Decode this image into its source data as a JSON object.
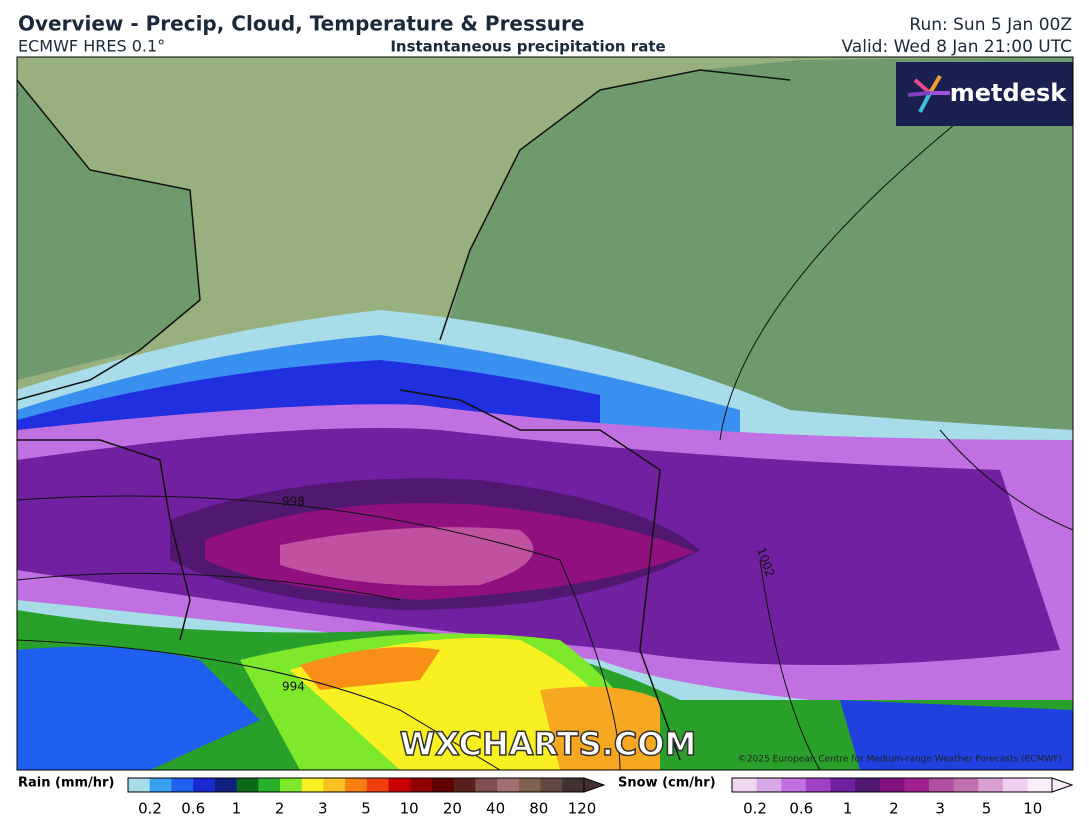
{
  "header": {
    "title": "Overview - Precip, Cloud, Temperature & Pressure",
    "model": "ECMWF HRES 0.1°",
    "subtitle": "Instantaneous precipitation rate",
    "run": "Run: Sun 5 Jan 00Z",
    "valid": "Valid: Wed 8 Jan 21:00 UTC"
  },
  "map": {
    "logo": "metdesk",
    "watermark": "WXCHARTS.COM",
    "copyright": "©2025 European Centre for Medium-range Weather Forecasts (ECMWF)",
    "isobar_labels": [
      "998",
      "994",
      "1002"
    ]
  },
  "legend": {
    "rain": {
      "label": "Rain (mm/hr)",
      "ticks": [
        "0.2",
        "0.6",
        "1",
        "2",
        "3",
        "5",
        "10",
        "20",
        "40",
        "80",
        "120"
      ]
    },
    "snow": {
      "label": "Snow (cm/hr)",
      "ticks": [
        "0.2",
        "0.6",
        "1",
        "2",
        "3",
        "5",
        "10"
      ]
    }
  }
}
